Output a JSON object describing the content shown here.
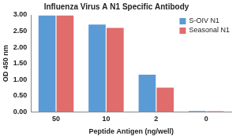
{
  "chart_data": {
    "type": "bar",
    "title": "Influenza Virus A N1 Specific Antibody",
    "x_label": "Peptide Antigen (ng/well)",
    "y_label": "OD 450 nm",
    "categories": [
      "50",
      "10",
      "2",
      "0"
    ],
    "series": [
      {
        "name": "S-OIV N1",
        "color": "#5b9bd5",
        "values": [
          2.98,
          2.7,
          1.15,
          0.03
        ]
      },
      {
        "name": "Seasonal N1",
        "color": "#e06c6c",
        "values": [
          2.98,
          2.6,
          0.75,
          0.02
        ]
      }
    ],
    "ylim": [
      0,
      3
    ],
    "yticks": [
      {
        "value": 0,
        "label": "0.00"
      },
      {
        "value": 0.5,
        "label": "0.50"
      },
      {
        "value": 1,
        "label": "1.00"
      },
      {
        "value": 1.5,
        "label": "1.50"
      },
      {
        "value": 2,
        "label": "2.00"
      },
      {
        "value": 2.5,
        "label": "2.50"
      },
      {
        "value": 3,
        "label": "3.00"
      }
    ],
    "grid": false,
    "legend": "upper right"
  }
}
